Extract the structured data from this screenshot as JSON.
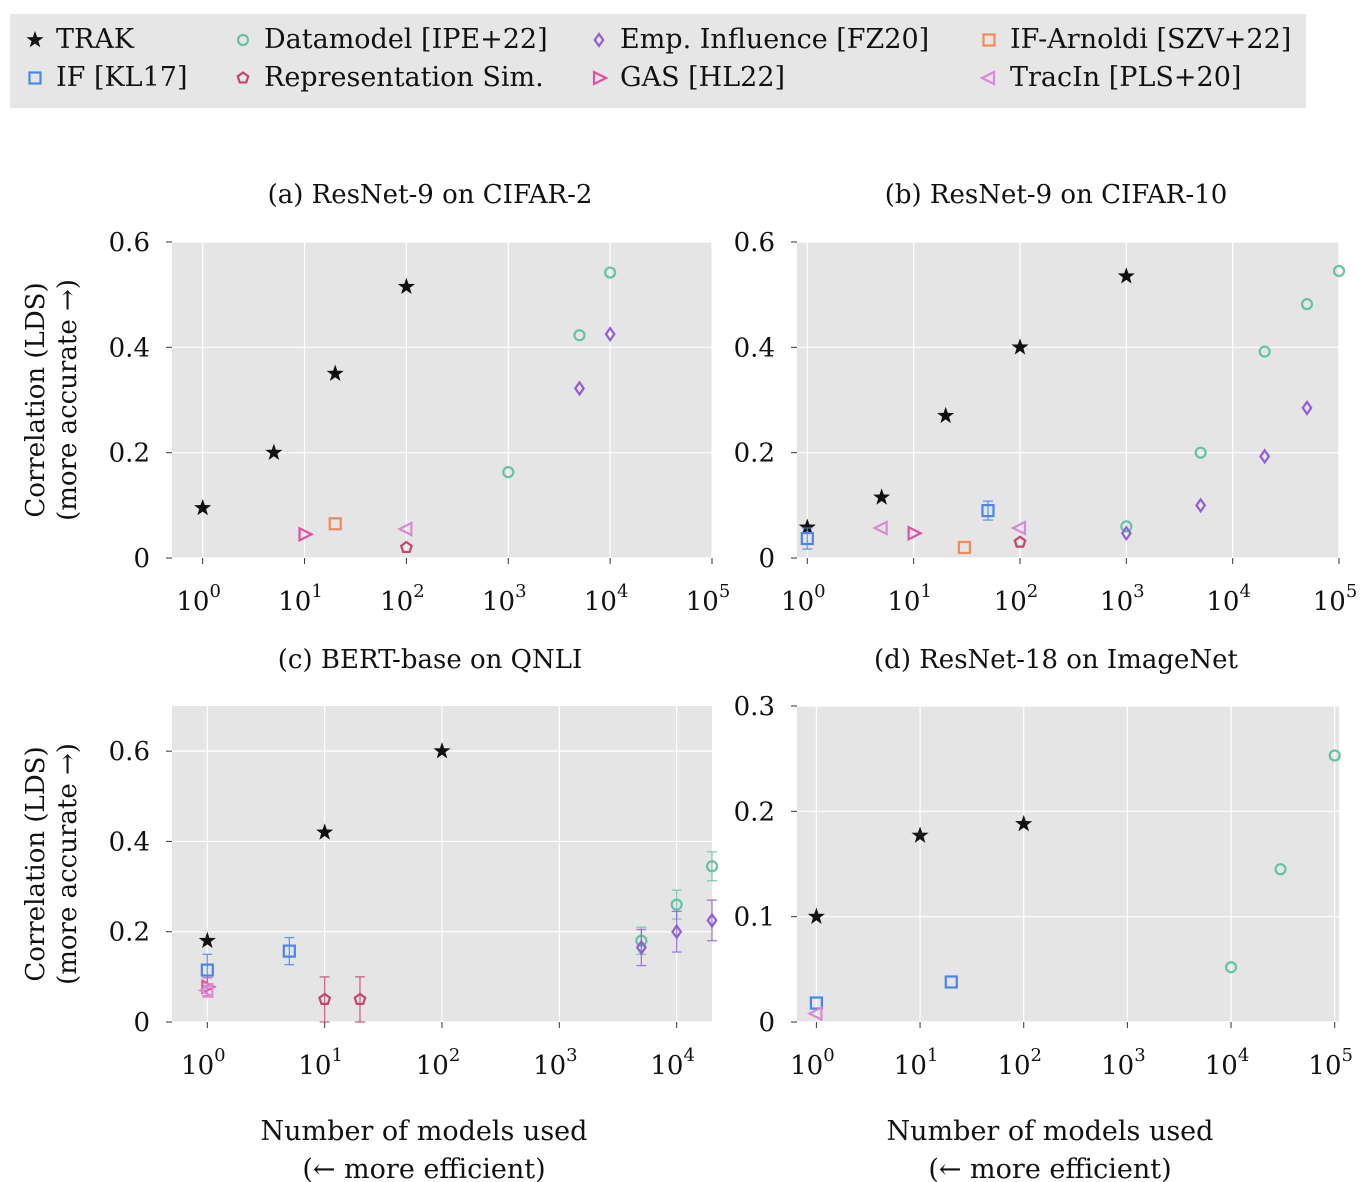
{
  "legend": [
    {
      "name": "TRAK",
      "marker": "star",
      "color": "#111111"
    },
    {
      "name": "Datamodel [IPE+22]",
      "marker": "circle",
      "color": "#66c2a5"
    },
    {
      "name": "Emp. Influence [FZ20]",
      "marker": "diamond",
      "color": "#8e5fd6"
    },
    {
      "name": "IF-Arnoldi [SZV+22]",
      "marker": "square",
      "color": "#ef8a5a"
    },
    {
      "name": "IF [KL17]",
      "marker": "square",
      "color": "#4a86e8"
    },
    {
      "name": "Representation Sim.",
      "marker": "pentagon",
      "color": "#c2466e"
    },
    {
      "name": "GAS [HL22]",
      "marker": "tri-right",
      "color": "#e04fa0"
    },
    {
      "name": "TracIn [PLS+20]",
      "marker": "tri-left",
      "color": "#d98ad3"
    }
  ],
  "chart_data": [
    {
      "type": "scatter",
      "title": "(a) ResNet-9 on CIFAR-2",
      "xlabel": "",
      "xlabel2": "",
      "ylabel": "Correlation (LDS)",
      "ylabel2": "(more accurate →)",
      "xscale": "log",
      "xlim": [
        0.5,
        100000
      ],
      "ylim": [
        0,
        0.6
      ],
      "xticks": [
        1,
        10,
        100,
        1000,
        10000,
        100000
      ],
      "yticks": [
        0,
        0.2,
        0.4,
        0.6
      ],
      "ytick_labels": [
        "0",
        "0.2",
        "0.4",
        "0.6"
      ],
      "grid": true,
      "series": [
        {
          "name": "TRAK",
          "points": [
            [
              1,
              0.095
            ],
            [
              5,
              0.2
            ],
            [
              20,
              0.35
            ],
            [
              100,
              0.515
            ]
          ]
        },
        {
          "name": "Datamodel [IPE+22]",
          "points": [
            [
              1000,
              0.163
            ],
            [
              5000,
              0.423
            ],
            [
              10000,
              0.542
            ]
          ]
        },
        {
          "name": "Emp. Influence [FZ20]",
          "points": [
            [
              5000,
              0.322
            ],
            [
              10000,
              0.425
            ]
          ]
        },
        {
          "name": "IF-Arnoldi [SZV+22]",
          "points": [
            [
              20,
              0.065
            ]
          ]
        },
        {
          "name": "Representation Sim.",
          "points": [
            [
              100,
              0.02
            ]
          ]
        },
        {
          "name": "GAS [HL22]",
          "points": [
            [
              10,
              0.045
            ]
          ]
        },
        {
          "name": "TracIn [PLS+20]",
          "points": [
            [
              100,
              0.055
            ]
          ]
        }
      ]
    },
    {
      "type": "scatter",
      "title": "(b) ResNet-9 on CIFAR-10",
      "xlabel": "",
      "xlabel2": "",
      "ylabel": "",
      "ylabel2": "",
      "xscale": "log",
      "xlim": [
        0.8,
        100000
      ],
      "ylim": [
        0,
        0.6
      ],
      "xticks": [
        1,
        10,
        100,
        1000,
        10000,
        100000
      ],
      "yticks": [
        0,
        0.2,
        0.4,
        0.6
      ],
      "ytick_labels": [
        "0",
        "0.2",
        "0.4",
        "0.6"
      ],
      "grid": true,
      "series": [
        {
          "name": "TRAK",
          "points": [
            [
              1,
              0.058
            ],
            [
              5,
              0.115
            ],
            [
              20,
              0.27
            ],
            [
              100,
              0.4
            ],
            [
              1000,
              0.535
            ]
          ]
        },
        {
          "name": "Datamodel [IPE+22]",
          "points": [
            [
              1000,
              0.06
            ],
            [
              5000,
              0.2
            ],
            [
              20000,
              0.392
            ],
            [
              50000,
              0.482
            ],
            [
              100000,
              0.545
            ]
          ]
        },
        {
          "name": "Emp. Influence [FZ20]",
          "points": [
            [
              1000,
              0.047
            ],
            [
              5000,
              0.1
            ],
            [
              20000,
              0.193
            ],
            [
              50000,
              0.285
            ]
          ]
        },
        {
          "name": "IF-Arnoldi [SZV+22]",
          "points": [
            [
              30,
              0.02
            ]
          ]
        },
        {
          "name": "IF [KL17]",
          "points": [
            [
              1,
              0.037,
              0.02
            ],
            [
              50,
              0.09,
              0.018
            ]
          ]
        },
        {
          "name": "Representation Sim.",
          "points": [
            [
              100,
              0.03
            ]
          ]
        },
        {
          "name": "GAS [HL22]",
          "points": [
            [
              10,
              0.047
            ]
          ]
        },
        {
          "name": "TracIn [PLS+20]",
          "points": [
            [
              5,
              0.057
            ],
            [
              100,
              0.057
            ]
          ]
        }
      ]
    },
    {
      "type": "scatter",
      "title": "(c) BERT-base on QNLI",
      "xlabel": "Number of models used",
      "xlabel2": "(← more efficient)",
      "ylabel": "Correlation (LDS)",
      "ylabel2": "(more accurate →)",
      "xscale": "log",
      "xlim": [
        0.5,
        20000
      ],
      "ylim": [
        0,
        0.7
      ],
      "xticks": [
        1,
        10,
        100,
        1000,
        10000
      ],
      "yticks": [
        0,
        0.2,
        0.4,
        0.6
      ],
      "ytick_labels": [
        "0",
        "0.2",
        "0.4",
        "0.6"
      ],
      "grid": true,
      "series": [
        {
          "name": "TRAK",
          "points": [
            [
              1,
              0.18
            ],
            [
              10,
              0.42
            ],
            [
              100,
              0.6
            ]
          ]
        },
        {
          "name": "Datamodel [IPE+22]",
          "points": [
            [
              5000,
              0.18,
              0.03
            ],
            [
              10000,
              0.26,
              0.032
            ],
            [
              20000,
              0.345,
              0.032
            ]
          ]
        },
        {
          "name": "Emp. Influence [FZ20]",
          "points": [
            [
              5000,
              0.165,
              0.04
            ],
            [
              10000,
              0.2,
              0.045
            ],
            [
              20000,
              0.225,
              0.045
            ]
          ]
        },
        {
          "name": "IF [KL17]",
          "points": [
            [
              1,
              0.115,
              0.035
            ],
            [
              5,
              0.157,
              0.03
            ]
          ]
        },
        {
          "name": "Representation Sim.",
          "points": [
            [
              10,
              0.05,
              0.05
            ],
            [
              20,
              0.05,
              0.05
            ]
          ]
        },
        {
          "name": "GAS [HL22]",
          "points": [
            [
              1,
              0.078,
              0.02
            ]
          ]
        },
        {
          "name": "TracIn [PLS+20]",
          "points": [
            [
              1,
              0.07,
              0.015
            ]
          ]
        }
      ]
    },
    {
      "type": "scatter",
      "title": "(d) ResNet-18 on ImageNet",
      "xlabel": "Number of models used",
      "xlabel2": "(← more efficient)",
      "ylabel": "",
      "ylabel2": "",
      "xscale": "log",
      "xlim": [
        0.65,
        110000
      ],
      "ylim": [
        0,
        0.3
      ],
      "xticks": [
        1,
        10,
        100,
        1000,
        10000,
        100000
      ],
      "yticks": [
        0,
        0.1,
        0.2,
        0.3
      ],
      "ytick_labels": [
        "0",
        "0.1",
        "0.2",
        "0.3"
      ],
      "grid": true,
      "series": [
        {
          "name": "TRAK",
          "points": [
            [
              1,
              0.1
            ],
            [
              10,
              0.177
            ],
            [
              100,
              0.188
            ]
          ]
        },
        {
          "name": "Datamodel [IPE+22]",
          "points": [
            [
              10000,
              0.052
            ],
            [
              30000,
              0.145
            ],
            [
              100000,
              0.253
            ]
          ]
        },
        {
          "name": "IF [KL17]",
          "points": [
            [
              1,
              0.018
            ],
            [
              20,
              0.038
            ]
          ]
        },
        {
          "name": "TracIn [PLS+20]",
          "points": [
            [
              1,
              0.008
            ]
          ]
        }
      ]
    }
  ]
}
